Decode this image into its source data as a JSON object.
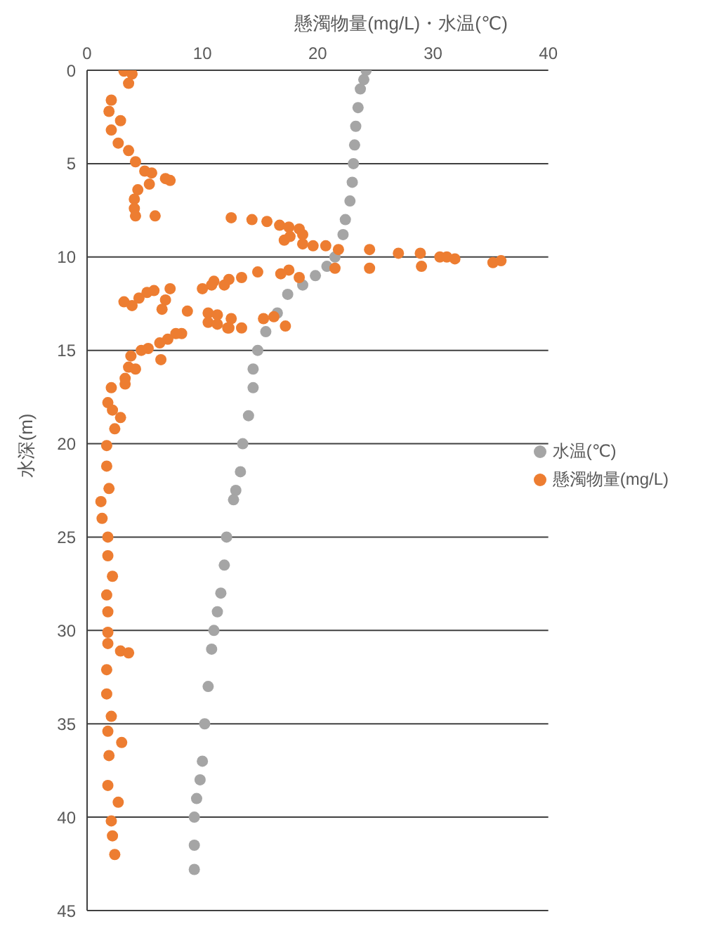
{
  "chart_data": {
    "type": "scatter",
    "xlabel": "懸濁物量(mg/L)・水温(℃)",
    "ylabel": "水深(m)",
    "xlim": [
      0,
      40
    ],
    "xticks": [
      0,
      10,
      20,
      30,
      40
    ],
    "ylim": [
      45,
      0
    ],
    "yticks": [
      0,
      5,
      10,
      15,
      20,
      25,
      30,
      35,
      40,
      45
    ],
    "grid": "y",
    "legend": "right",
    "marker": "circle",
    "series": [
      {
        "name": "水温(℃)",
        "color": "#a5a5a5",
        "x": [
          24.2,
          24.0,
          23.7,
          23.5,
          23.3,
          23.2,
          23.1,
          23.0,
          22.8,
          22.4,
          22.2,
          21.5,
          20.8,
          19.8,
          18.7,
          17.4,
          16.5,
          15.5,
          14.8,
          14.4,
          14.4,
          14.0,
          13.5,
          13.3,
          12.9,
          12.7,
          12.1,
          11.9,
          11.6,
          11.3,
          11.0,
          10.8,
          10.5,
          10.2,
          10.0,
          9.8,
          9.5,
          9.3,
          9.3,
          9.3
        ],
        "values": [
          0,
          0.5,
          1,
          2,
          3,
          4,
          5,
          6,
          7,
          8,
          8.8,
          10,
          10.5,
          11,
          11.5,
          12,
          13,
          14,
          15,
          16,
          17,
          18.5,
          20,
          21.5,
          22.5,
          23,
          25,
          26.5,
          28,
          29,
          30,
          31,
          33,
          35,
          37,
          38,
          39,
          40,
          41.5,
          42.8
        ]
      },
      {
        "name": "懸濁物量(mg/L)",
        "color": "#ed7d31",
        "x": [
          3.2,
          3.9,
          3.6,
          2.1,
          1.9,
          2.9,
          2.1,
          2.7,
          3.6,
          4.2,
          5.0,
          5.6,
          6.8,
          7.2,
          5.4,
          4.4,
          4.1,
          4.1,
          4.2,
          5.9,
          12.5,
          14.3,
          15.6,
          16.7,
          17.5,
          18.4,
          18.7,
          17.1,
          17.6,
          18.7,
          19.6,
          20.7,
          21.8,
          24.5,
          27.0,
          28.9,
          30.6,
          31.2,
          31.9,
          35.2,
          35.9,
          29.0,
          24.5,
          21.5,
          18.4,
          17.5,
          16.8,
          14.8,
          13.4,
          12.3,
          11.9,
          11.0,
          10.8,
          10.0,
          7.2,
          6.8,
          6.5,
          5.8,
          5.2,
          4.5,
          3.9,
          3.2,
          8.7,
          10.5,
          11.3,
          10.5,
          11.3,
          12.3,
          13.4,
          15.3,
          16.2,
          17.2,
          12.5,
          12.2,
          8.2,
          7.7,
          7.0,
          6.3,
          6.4,
          5.3,
          4.7,
          3.8,
          3.6,
          3.3,
          4.2,
          3.3,
          2.1,
          1.8,
          2.2,
          2.9,
          2.4,
          1.7,
          1.7,
          1.9,
          1.2,
          1.3,
          1.8,
          1.8,
          2.2,
          1.7,
          1.8,
          1.8,
          1.8,
          2.9,
          3.6,
          1.7,
          1.7,
          2.1,
          1.8,
          3.0,
          1.9,
          1.8,
          2.7,
          2.1,
          2.2,
          2.4
        ],
        "values": [
          0.05,
          0.2,
          0.7,
          1.6,
          2.2,
          2.7,
          3.2,
          3.9,
          4.3,
          4.9,
          5.4,
          5.5,
          5.8,
          5.9,
          6.1,
          6.4,
          6.9,
          7.4,
          7.8,
          7.8,
          7.9,
          8.0,
          8.1,
          8.3,
          8.4,
          8.5,
          8.8,
          9.1,
          8.9,
          9.3,
          9.4,
          9.4,
          9.6,
          9.6,
          9.8,
          9.8,
          10.0,
          10.0,
          10.1,
          10.3,
          10.2,
          10.5,
          10.6,
          10.6,
          11.1,
          10.7,
          10.9,
          10.8,
          11.1,
          11.2,
          11.5,
          11.3,
          11.5,
          11.7,
          11.7,
          12.3,
          12.8,
          11.8,
          11.9,
          12.2,
          12.6,
          12.4,
          12.9,
          13.0,
          13.1,
          13.5,
          13.6,
          13.8,
          13.8,
          13.3,
          13.2,
          13.7,
          13.3,
          13.8,
          14.1,
          14.1,
          14.4,
          14.6,
          15.5,
          14.9,
          15.0,
          15.3,
          15.9,
          16.5,
          16.0,
          16.8,
          17.0,
          17.8,
          18.2,
          18.6,
          19.2,
          20.1,
          21.2,
          22.4,
          23.1,
          24.0,
          25.0,
          26.0,
          27.1,
          28.1,
          29.0,
          30.1,
          30.7,
          31.1,
          31.2,
          32.1,
          33.4,
          34.6,
          35.4,
          36.0,
          36.7,
          38.3,
          39.2,
          40.2,
          41.0,
          42.0
        ]
      }
    ]
  }
}
